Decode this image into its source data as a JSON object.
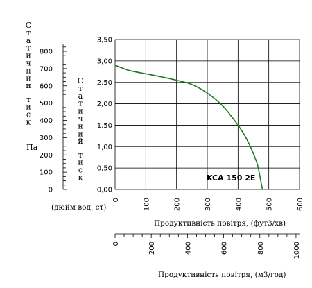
{
  "chart_data": {
    "type": "line",
    "series": [
      {
        "name": "KCA 150 2E",
        "x": [
          0,
          25,
          50,
          100,
          150,
          200,
          250,
          300,
          350,
          400,
          430,
          460,
          470,
          478,
          480
        ],
        "y": [
          2.9,
          2.83,
          2.77,
          2.7,
          2.63,
          2.55,
          2.45,
          2.25,
          1.95,
          1.5,
          1.15,
          0.65,
          0.35,
          0.05,
          0.0
        ]
      }
    ],
    "primary": {
      "xlabel": "Продуктивність повітря, (фут3/хв)",
      "ylabel": "Статичний тиск",
      "ylabel_unit": "(дюйм вод. ст)",
      "xlim": [
        0,
        600
      ],
      "ylim": [
        0,
        3.5
      ],
      "x_ticks": [
        "0",
        "100",
        "200",
        "300",
        "400",
        "500",
        "600"
      ],
      "y_ticks": [
        "0,00",
        "0,50",
        "1,00",
        "1,50",
        "2,00",
        "2,50",
        "3,00",
        "3,50"
      ],
      "grid": true
    },
    "secondary_y": {
      "label": "Статичний тиск",
      "unit": "Па",
      "ylim": [
        0,
        871.8
      ],
      "y_ticks": [
        "0",
        "100",
        "200",
        "300",
        "400",
        "500",
        "600",
        "700",
        "800"
      ]
    },
    "secondary_x": {
      "label": "Продуктивність повітря, (м3/год)",
      "xlim": [
        0,
        1019.4
      ],
      "x_ticks": [
        "0",
        "200",
        "400",
        "600",
        "800",
        "1000"
      ]
    },
    "annotation": "KCA 150 2E",
    "line_color": "#1f7a1f"
  }
}
